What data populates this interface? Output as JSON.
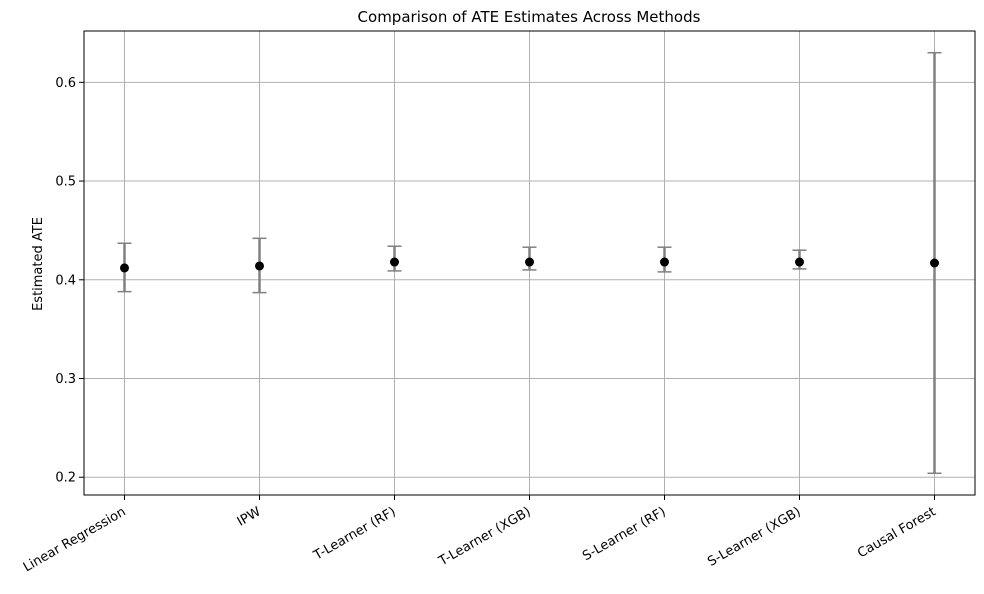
{
  "chart_data": {
    "type": "scatter",
    "title": "Comparison of ATE Estimates Across Methods",
    "xlabel": "",
    "ylabel": "Estimated ATE",
    "categories": [
      "Linear Regression",
      "IPW",
      "T-Learner (RF)",
      "T-Learner (XGB)",
      "S-Learner (RF)",
      "S-Learner (XGB)",
      "Causal Forest"
    ],
    "values": [
      0.412,
      0.414,
      0.418,
      0.418,
      0.418,
      0.418,
      0.417
    ],
    "error_lower": [
      0.388,
      0.387,
      0.409,
      0.41,
      0.408,
      0.411,
      0.204
    ],
    "error_upper": [
      0.437,
      0.442,
      0.434,
      0.433,
      0.433,
      0.43,
      0.63
    ],
    "ylim": [
      0.182,
      0.652
    ],
    "yticks": [
      0.2,
      0.3,
      0.4,
      0.5,
      0.6
    ],
    "ytick_labels": [
      "0.2",
      "0.3",
      "0.4",
      "0.5",
      "0.6"
    ],
    "grid": true,
    "colors": {
      "point": "#000000",
      "errorbar": "#808080",
      "grid": "#b0b0b0",
      "axes": "#000000"
    }
  }
}
